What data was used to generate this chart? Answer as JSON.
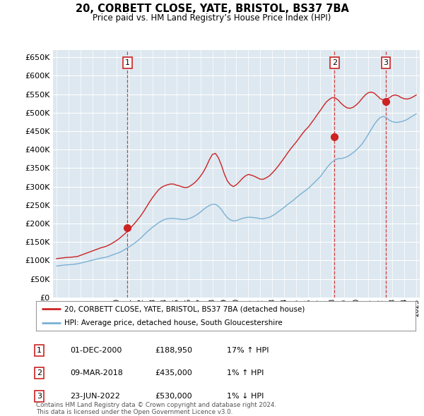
{
  "title": "20, CORBETT CLOSE, YATE, BRISTOL, BS37 7BA",
  "subtitle": "Price paid vs. HM Land Registry’s House Price Index (HPI)",
  "ytick_values": [
    0,
    50000,
    100000,
    150000,
    200000,
    250000,
    300000,
    350000,
    400000,
    450000,
    500000,
    550000,
    600000,
    650000
  ],
  "ylim": [
    0,
    670000
  ],
  "hpi_color": "#7ab0d4",
  "price_color": "#cc2222",
  "background_color": "#dde8f0",
  "grid_color": "#ffffff",
  "sale_points": [
    {
      "year": 2000.92,
      "price": 188950,
      "label": "1"
    },
    {
      "year": 2018.18,
      "price": 435000,
      "label": "2"
    },
    {
      "year": 2022.47,
      "price": 530000,
      "label": "3"
    }
  ],
  "legend_label_red": "20, CORBETT CLOSE, YATE, BRISTOL, BS37 7BA (detached house)",
  "legend_label_blue": "HPI: Average price, detached house, South Gloucestershire",
  "table_rows": [
    {
      "num": "1",
      "date": "01-DEC-2000",
      "price": "£188,950",
      "hpi": "17% ↑ HPI"
    },
    {
      "num": "2",
      "date": "09-MAR-2018",
      "price": "£435,000",
      "hpi": "1% ↑ HPI"
    },
    {
      "num": "3",
      "date": "23-JUN-2022",
      "price": "£530,000",
      "hpi": "1% ↓ HPI"
    }
  ],
  "footnote": "Contains HM Land Registry data © Crown copyright and database right 2024.\nThis data is licensed under the Open Government Licence v3.0.",
  "x_years": [
    1995.0,
    1995.25,
    1995.5,
    1995.75,
    1996.0,
    1996.25,
    1996.5,
    1996.75,
    1997.0,
    1997.25,
    1997.5,
    1997.75,
    1998.0,
    1998.25,
    1998.5,
    1998.75,
    1999.0,
    1999.25,
    1999.5,
    1999.75,
    2000.0,
    2000.25,
    2000.5,
    2000.75,
    2001.0,
    2001.25,
    2001.5,
    2001.75,
    2002.0,
    2002.25,
    2002.5,
    2002.75,
    2003.0,
    2003.25,
    2003.5,
    2003.75,
    2004.0,
    2004.25,
    2004.5,
    2004.75,
    2005.0,
    2005.25,
    2005.5,
    2005.75,
    2006.0,
    2006.25,
    2006.5,
    2006.75,
    2007.0,
    2007.25,
    2007.5,
    2007.75,
    2008.0,
    2008.25,
    2008.5,
    2008.75,
    2009.0,
    2009.25,
    2009.5,
    2009.75,
    2010.0,
    2010.25,
    2010.5,
    2010.75,
    2011.0,
    2011.25,
    2011.5,
    2011.75,
    2012.0,
    2012.25,
    2012.5,
    2012.75,
    2013.0,
    2013.25,
    2013.5,
    2013.75,
    2014.0,
    2014.25,
    2014.5,
    2014.75,
    2015.0,
    2015.25,
    2015.5,
    2015.75,
    2016.0,
    2016.25,
    2016.5,
    2016.75,
    2017.0,
    2017.25,
    2017.5,
    2017.75,
    2018.0,
    2018.25,
    2018.5,
    2018.75,
    2019.0,
    2019.25,
    2019.5,
    2019.75,
    2020.0,
    2020.25,
    2020.5,
    2020.75,
    2021.0,
    2021.25,
    2021.5,
    2021.75,
    2022.0,
    2022.25,
    2022.5,
    2022.75,
    2023.0,
    2023.25,
    2023.5,
    2023.75,
    2024.0,
    2024.25,
    2024.5,
    2024.75,
    2025.0
  ],
  "hpi_values": [
    85000,
    86000,
    87000,
    88000,
    88500,
    89000,
    90000,
    91000,
    93000,
    95000,
    97000,
    99000,
    101000,
    103000,
    105000,
    107000,
    108000,
    110000,
    113000,
    116000,
    119000,
    122000,
    126000,
    131000,
    136000,
    141000,
    147000,
    153000,
    160000,
    168000,
    176000,
    183000,
    190000,
    196000,
    202000,
    207000,
    211000,
    213000,
    214000,
    214000,
    213000,
    212000,
    211000,
    211000,
    213000,
    216000,
    220000,
    225000,
    231000,
    238000,
    244000,
    249000,
    252000,
    252000,
    247000,
    238000,
    226000,
    216000,
    210000,
    207000,
    208000,
    211000,
    214000,
    216000,
    217000,
    217000,
    216000,
    215000,
    213000,
    213000,
    215000,
    217000,
    221000,
    226000,
    232000,
    238000,
    244000,
    251000,
    257000,
    263000,
    270000,
    277000,
    283000,
    289000,
    295000,
    303000,
    311000,
    319000,
    327000,
    338000,
    349000,
    359000,
    367000,
    373000,
    376000,
    376000,
    378000,
    381000,
    386000,
    392000,
    399000,
    407000,
    416000,
    428000,
    441000,
    455000,
    468000,
    479000,
    487000,
    490000,
    487000,
    480000,
    476000,
    474000,
    474000,
    476000,
    478000,
    482000,
    487000,
    492000,
    497000
  ],
  "red_values": [
    105000,
    106000,
    107000,
    108000,
    108500,
    109000,
    110000,
    111000,
    114000,
    117000,
    120000,
    123000,
    126000,
    129000,
    132000,
    135000,
    137000,
    140000,
    144000,
    149000,
    154000,
    160000,
    167000,
    174000,
    182000,
    191000,
    200000,
    210000,
    220000,
    232000,
    245000,
    258000,
    270000,
    281000,
    291000,
    298000,
    302000,
    305000,
    307000,
    307000,
    304000,
    302000,
    299000,
    297000,
    299000,
    304000,
    310000,
    318000,
    328000,
    340000,
    355000,
    373000,
    387000,
    390000,
    378000,
    358000,
    334000,
    315000,
    305000,
    300000,
    305000,
    313000,
    322000,
    329000,
    333000,
    331000,
    328000,
    324000,
    320000,
    320000,
    324000,
    329000,
    337000,
    346000,
    356000,
    367000,
    378000,
    390000,
    401000,
    411000,
    421000,
    432000,
    443000,
    453000,
    461000,
    472000,
    483000,
    495000,
    506000,
    518000,
    529000,
    536000,
    541000,
    540000,
    534000,
    525000,
    518000,
    513000,
    512000,
    515000,
    521000,
    529000,
    539000,
    548000,
    554000,
    556000,
    553000,
    546000,
    538000,
    535000,
    536000,
    540000,
    546000,
    548000,
    546000,
    541000,
    538000,
    537000,
    539000,
    543000,
    548000
  ]
}
